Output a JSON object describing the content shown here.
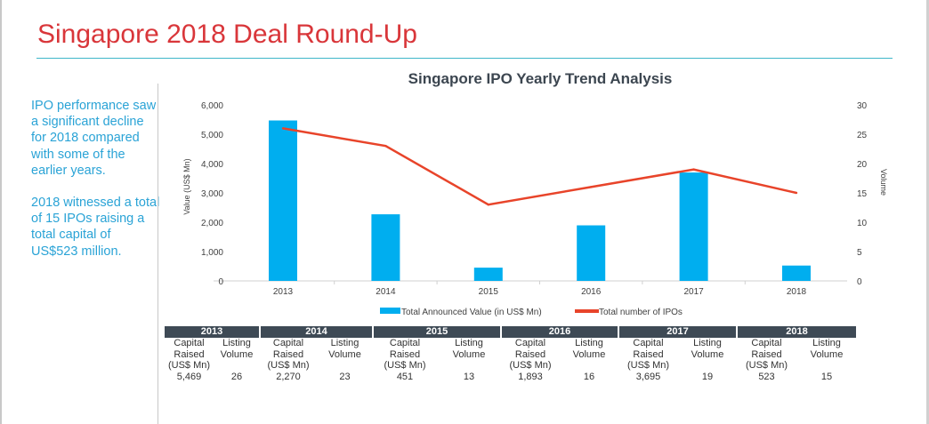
{
  "page_title": "Singapore 2018 Deal Round-Up",
  "side_text": [
    "IPO performance saw a significant decline for 2018 compared with some of the earlier years.",
    "2018 witnessed a total of 15 IPOs raising a total capital of US$523 million."
  ],
  "colors": {
    "title": "#d9363a",
    "accent_line": "#3fb7c9",
    "side_text": "#2aa3d6",
    "bar": "#00aeef",
    "line": "#e8442a",
    "table_header": "#3e4a55"
  },
  "chart_data": {
    "type": "bar+line",
    "title": "Singapore IPO Yearly Trend Analysis",
    "categories": [
      "2013",
      "2014",
      "2015",
      "2016",
      "2017",
      "2018"
    ],
    "series": [
      {
        "name": "Total Announced Value (in US$ Mn)",
        "type": "bar",
        "axis": "left",
        "values": [
          5469,
          2270,
          451,
          1893,
          3695,
          523
        ]
      },
      {
        "name": "Total number of IPOs",
        "type": "line",
        "axis": "right",
        "values": [
          26,
          23,
          13,
          16,
          19,
          15
        ]
      }
    ],
    "ylabel": "Value (US$ Mn)",
    "y2label": "Volume",
    "ylim": [
      0,
      6000
    ],
    "y2lim": [
      0,
      30
    ],
    "yticks": [
      "0",
      "1,000",
      "2,000",
      "3,000",
      "4,000",
      "5,000",
      "6,000"
    ],
    "y2ticks": [
      "0",
      "5",
      "10",
      "15",
      "20",
      "25",
      "30"
    ],
    "grid": false,
    "legend": "bottom"
  },
  "table": {
    "col1_header": [
      "Capital",
      "Raised",
      "(US$ Mn)"
    ],
    "col2_header": [
      "Listing",
      "Volume"
    ],
    "years": [
      {
        "year": "2013",
        "capital": "5,469",
        "volume": "26"
      },
      {
        "year": "2014",
        "capital": "2,270",
        "volume": "23"
      },
      {
        "year": "2015",
        "capital": "451",
        "volume": "13"
      },
      {
        "year": "2016",
        "capital": "1,893",
        "volume": "16"
      },
      {
        "year": "2017",
        "capital": "3,695",
        "volume": "19"
      },
      {
        "year": "2018",
        "capital": "523",
        "volume": "15"
      }
    ]
  }
}
